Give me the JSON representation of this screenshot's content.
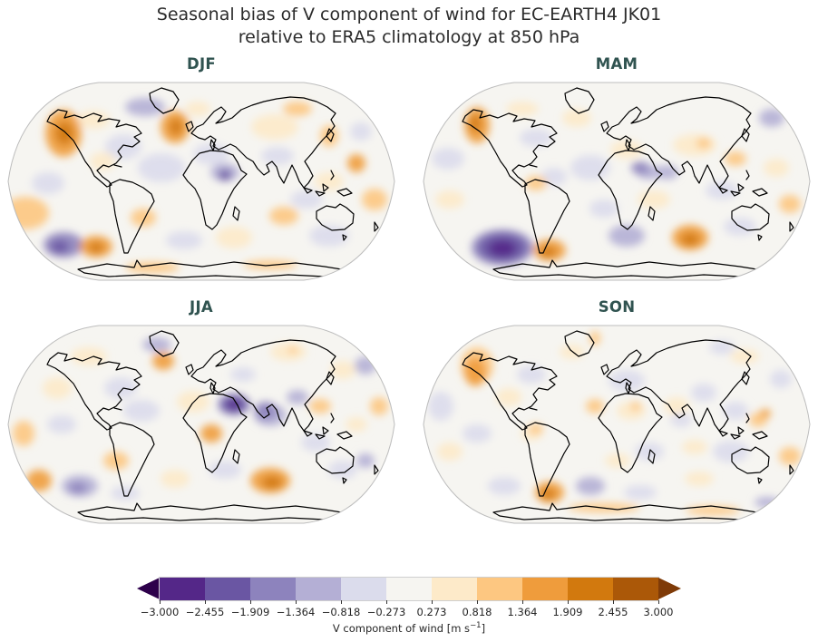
{
  "figure": {
    "title_line1": "Seasonal bias of V component of wind for EC-EARTH4 JK01",
    "title_line2": "relative to ERA5 climatology at 850 hPa"
  },
  "chart_data": {
    "type": "heatmap",
    "subtype": "filled-contour-world-maps",
    "projection": "Robinson",
    "title": "Seasonal bias of V component of wind for EC-EARTH4 JK01 relative to ERA5 climatology at 850 hPa",
    "legend_position": "bottom",
    "palette": [
      "#2d004b",
      "#542788",
      "#6a56a3",
      "#8d83bd",
      "#b4afd5",
      "#dbdcec",
      "#f6f5f1",
      "#fdeac9",
      "#fdc781",
      "#ef9c3c",
      "#d2790e",
      "#ab5808",
      "#7f3b08"
    ],
    "colorbar": {
      "extend": "both",
      "under_color_index": 0,
      "over_color_index": 12,
      "cell_color_indices": [
        1,
        2,
        3,
        4,
        5,
        6,
        7,
        8,
        9,
        10,
        11
      ],
      "tick_values": [
        -3.0,
        -2.455,
        -1.909,
        -1.364,
        -0.818,
        -0.273,
        0.273,
        0.818,
        1.364,
        1.909,
        2.455,
        3.0
      ],
      "tick_labels": [
        "−3.000",
        "−2.455",
        "−1.909",
        "−1.364",
        "−0.818",
        "−0.273",
        "0.273",
        "0.818",
        "1.364",
        "1.909",
        "2.455",
        "3.000"
      ],
      "label_prefix": "V component of wind [m s",
      "label_sup": "−1",
      "label_suffix": "]"
    },
    "panels": [
      {
        "season": "DJF",
        "blobs": [
          [
            20,
            145,
            26,
            18,
            8
          ],
          [
            45,
            112,
            18,
            12,
            5
          ],
          [
            95,
            42,
            18,
            10,
            7
          ],
          [
            152,
            28,
            22,
            10,
            4
          ],
          [
            210,
            30,
            14,
            8,
            7
          ],
          [
            128,
            72,
            20,
            14,
            5
          ],
          [
            105,
            88,
            14,
            10,
            7
          ],
          [
            170,
            95,
            26,
            16,
            5
          ],
          [
            225,
            80,
            20,
            12,
            5
          ],
          [
            240,
            100,
            16,
            10,
            4
          ],
          [
            295,
            50,
            26,
            14,
            7
          ],
          [
            320,
            30,
            16,
            8,
            8
          ],
          [
            298,
            82,
            18,
            10,
            5
          ],
          [
            355,
            110,
            16,
            10,
            7
          ],
          [
            330,
            130,
            18,
            10,
            5
          ],
          [
            390,
            55,
            12,
            10,
            5
          ],
          [
            405,
            130,
            14,
            12,
            8
          ],
          [
            150,
            150,
            14,
            10,
            8
          ],
          [
            195,
            175,
            20,
            10,
            5
          ],
          [
            250,
            172,
            20,
            12,
            7
          ],
          [
            305,
            148,
            16,
            10,
            8
          ],
          [
            355,
            170,
            22,
            12,
            5
          ],
          [
            160,
            205,
            30,
            6,
            8
          ],
          [
            290,
            202,
            30,
            5,
            8
          ],
          [
            62,
            57,
            20,
            26,
            9
          ],
          [
            63,
            57,
            10,
            13,
            10
          ],
          [
            185,
            50,
            16,
            18,
            9
          ],
          [
            186,
            50,
            7,
            9,
            10
          ],
          [
            240,
            103,
            7,
            6,
            2
          ],
          [
            355,
            60,
            10,
            12,
            8
          ],
          [
            385,
            90,
            10,
            10,
            9
          ],
          [
            62,
            180,
            22,
            14,
            3
          ],
          [
            58,
            182,
            10,
            7,
            2
          ],
          [
            98,
            182,
            18,
            12,
            9
          ],
          [
            98,
            183,
            8,
            6,
            10
          ]
        ]
      },
      {
        "season": "MAM",
        "blobs": [
          [
            28,
            85,
            18,
            12,
            5
          ],
          [
            110,
            30,
            18,
            8,
            7
          ],
          [
            170,
            40,
            16,
            10,
            7
          ],
          [
            125,
            62,
            18,
            10,
            5
          ],
          [
            145,
            105,
            14,
            10,
            5
          ],
          [
            185,
            95,
            22,
            14,
            5
          ],
          [
            225,
            75,
            18,
            10,
            7
          ],
          [
            250,
            100,
            14,
            8,
            4
          ],
          [
            300,
            70,
            24,
            12,
            7
          ],
          [
            330,
            120,
            18,
            10,
            5
          ],
          [
            30,
            130,
            16,
            10,
            7
          ],
          [
            255,
            130,
            18,
            10,
            7
          ],
          [
            200,
            140,
            16,
            10,
            5
          ],
          [
            390,
            95,
            14,
            10,
            7
          ],
          [
            350,
            160,
            18,
            10,
            5
          ],
          [
            385,
            40,
            14,
            10,
            4
          ],
          [
            405,
            135,
            12,
            10,
            8
          ],
          [
            225,
            170,
            20,
            12,
            4
          ],
          [
            60,
            48,
            14,
            20,
            9
          ],
          [
            58,
            46,
            6,
            10,
            10
          ],
          [
            125,
            112,
            12,
            8,
            8
          ],
          [
            240,
            95,
            10,
            7,
            3
          ],
          [
            270,
            100,
            12,
            8,
            4
          ],
          [
            310,
            68,
            8,
            6,
            8
          ],
          [
            345,
            85,
            12,
            8,
            8
          ],
          [
            88,
            183,
            34,
            20,
            3
          ],
          [
            88,
            183,
            26,
            15,
            2
          ],
          [
            88,
            184,
            15,
            9,
            1
          ],
          [
            140,
            186,
            18,
            12,
            9
          ],
          [
            138,
            188,
            9,
            6,
            10
          ],
          [
            295,
            172,
            20,
            14,
            9
          ],
          [
            295,
            174,
            10,
            7,
            10
          ]
        ]
      },
      {
        "season": "JJA",
        "blobs": [
          [
            18,
            120,
            12,
            14,
            8
          ],
          [
            55,
            70,
            16,
            12,
            7
          ],
          [
            90,
            35,
            20,
            10,
            7
          ],
          [
            60,
            110,
            16,
            10,
            5
          ],
          [
            120,
            150,
            14,
            10,
            8
          ],
          [
            125,
            70,
            18,
            12,
            5
          ],
          [
            165,
            22,
            16,
            8,
            4
          ],
          [
            148,
            95,
            20,
            12,
            5
          ],
          [
            205,
            85,
            18,
            12,
            7
          ],
          [
            310,
            30,
            20,
            10,
            7
          ],
          [
            260,
            55,
            14,
            8,
            5
          ],
          [
            370,
            50,
            14,
            10,
            7
          ],
          [
            395,
            45,
            12,
            10,
            4
          ],
          [
            385,
            110,
            12,
            8,
            7
          ],
          [
            340,
            130,
            16,
            10,
            5
          ],
          [
            240,
            160,
            18,
            10,
            5
          ],
          [
            185,
            170,
            16,
            10,
            7
          ],
          [
            130,
            186,
            16,
            8,
            5
          ],
          [
            370,
            160,
            16,
            10,
            5
          ],
          [
            395,
            150,
            10,
            8,
            4
          ],
          [
            320,
            80,
            12,
            8,
            4
          ],
          [
            290,
            100,
            18,
            12,
            4
          ],
          [
            35,
            172,
            14,
            12,
            9
          ],
          [
            80,
            178,
            20,
            12,
            4
          ],
          [
            78,
            180,
            10,
            6,
            3
          ],
          [
            172,
            40,
            12,
            10,
            9
          ],
          [
            225,
            120,
            12,
            10,
            9
          ],
          [
            250,
            88,
            18,
            12,
            3
          ],
          [
            250,
            88,
            13,
            9,
            2
          ],
          [
            250,
            88,
            7,
            5,
            1
          ],
          [
            285,
            95,
            12,
            10,
            3
          ],
          [
            345,
            90,
            12,
            8,
            8
          ],
          [
            410,
            90,
            10,
            10,
            8
          ],
          [
            290,
            172,
            22,
            14,
            9
          ],
          [
            292,
            174,
            11,
            7,
            10
          ],
          [
            315,
            28,
            5,
            4,
            8
          ]
        ]
      },
      {
        "season": "SON",
        "blobs": [
          [
            20,
            90,
            14,
            16,
            5
          ],
          [
            30,
            140,
            14,
            10,
            7
          ],
          [
            60,
            120,
            16,
            10,
            5
          ],
          [
            95,
            80,
            14,
            10,
            7
          ],
          [
            120,
            55,
            16,
            10,
            5
          ],
          [
            165,
            30,
            14,
            8,
            7
          ],
          [
            225,
            62,
            20,
            12,
            5
          ],
          [
            230,
            95,
            16,
            10,
            7
          ],
          [
            280,
            90,
            14,
            10,
            7
          ],
          [
            285,
            105,
            12,
            8,
            5
          ],
          [
            310,
            75,
            14,
            10,
            5
          ],
          [
            345,
            95,
            14,
            10,
            5
          ],
          [
            395,
            60,
            12,
            10,
            5
          ],
          [
            340,
            140,
            20,
            12,
            5
          ],
          [
            300,
            135,
            14,
            8,
            7
          ],
          [
            250,
            140,
            16,
            10,
            5
          ],
          [
            215,
            150,
            14,
            8,
            7
          ],
          [
            185,
            178,
            16,
            10,
            4
          ],
          [
            240,
            185,
            18,
            8,
            5
          ],
          [
            90,
            178,
            18,
            10,
            5
          ],
          [
            120,
            120,
            12,
            8,
            7
          ],
          [
            305,
            170,
            16,
            8,
            7
          ],
          [
            355,
            35,
            16,
            8,
            7
          ],
          [
            330,
            25,
            14,
            8,
            5
          ],
          [
            200,
            202,
            40,
            5,
            8
          ],
          [
            380,
            196,
            14,
            6,
            4
          ],
          [
            60,
            45,
            18,
            20,
            8
          ],
          [
            58,
            52,
            12,
            16,
            9
          ],
          [
            190,
            90,
            10,
            8,
            8
          ],
          [
            235,
            90,
            6,
            5,
            8
          ],
          [
            370,
            105,
            10,
            8,
            8
          ],
          [
            378,
            98,
            6,
            5,
            9
          ],
          [
            405,
            145,
            12,
            10,
            8
          ],
          [
            140,
            185,
            16,
            12,
            9
          ],
          [
            138,
            187,
            8,
            6,
            10
          ],
          [
            125,
            115,
            8,
            6,
            8
          ],
          [
            190,
            15,
            6,
            8,
            8
          ],
          [
            320,
            205,
            30,
            5,
            8
          ]
        ]
      }
    ]
  }
}
